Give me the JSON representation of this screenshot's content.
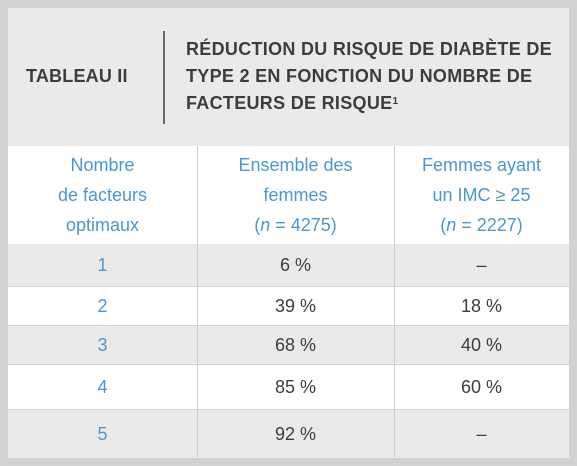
{
  "table": {
    "label": "TABLEAU II",
    "title": "RÉDUCTION DU RISQUE DE DIABÈTE DE TYPE 2 EN FONCTION DU NOMBRE DE FACTEURS DE RISQUE",
    "title_footnote": "1",
    "headers": {
      "col1": [
        "Nombre",
        "de facteurs",
        "optimaux"
      ],
      "col2": [
        "Ensemble des",
        "femmes",
        "n",
        " = 4275"
      ],
      "col3": [
        "Femmes ayant",
        "un IMC ≥ 25",
        "n",
        " = 2227"
      ]
    },
    "rows": [
      {
        "n": "1",
        "all": "6 %",
        "bmi": "–"
      },
      {
        "n": "2",
        "all": "39 %",
        "bmi": "18 %"
      },
      {
        "n": "3",
        "all": "68 %",
        "bmi": "40 %"
      },
      {
        "n": "4",
        "all": "85 %",
        "bmi": "60 %"
      },
      {
        "n": "5",
        "all": "92 %",
        "bmi": "–"
      }
    ]
  }
}
